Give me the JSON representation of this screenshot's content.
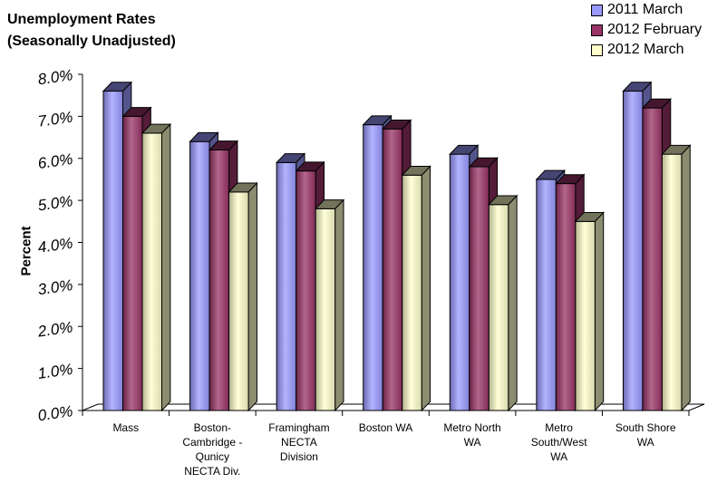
{
  "chart_data": {
    "type": "bar",
    "title": "Unemployment Rates\n(Seasonally Unadjusted)",
    "ylabel": "Percent",
    "xlabel": "",
    "ylim": [
      0,
      8
    ],
    "yticks": [
      "0.0%",
      "1.0%",
      "2.0%",
      "3.0%",
      "4.0%",
      "5.0%",
      "6.0%",
      "7.0%",
      "8.0%"
    ],
    "categories": [
      "Mass",
      "Boston-\nCambridge -\nQunicy\nNECTA Div.",
      "Framingham\nNECTA\nDivision",
      "Boston WA",
      "Metro North\nWA",
      "Metro\nSouth/West\nWA",
      "South Shore\nWA"
    ],
    "series": [
      {
        "name": "2011 March",
        "color": "#9999ff",
        "values": [
          7.6,
          6.4,
          5.9,
          6.8,
          6.1,
          5.5,
          7.6
        ]
      },
      {
        "name": "2012 February",
        "color": "#993366",
        "values": [
          7.0,
          6.2,
          5.7,
          6.7,
          5.8,
          5.4,
          7.2
        ]
      },
      {
        "name": "2012 March",
        "color": "#ffffcc",
        "values": [
          6.6,
          5.2,
          4.8,
          5.6,
          4.9,
          4.5,
          6.1
        ]
      }
    ],
    "legend_position": "top-right",
    "grid": false
  }
}
